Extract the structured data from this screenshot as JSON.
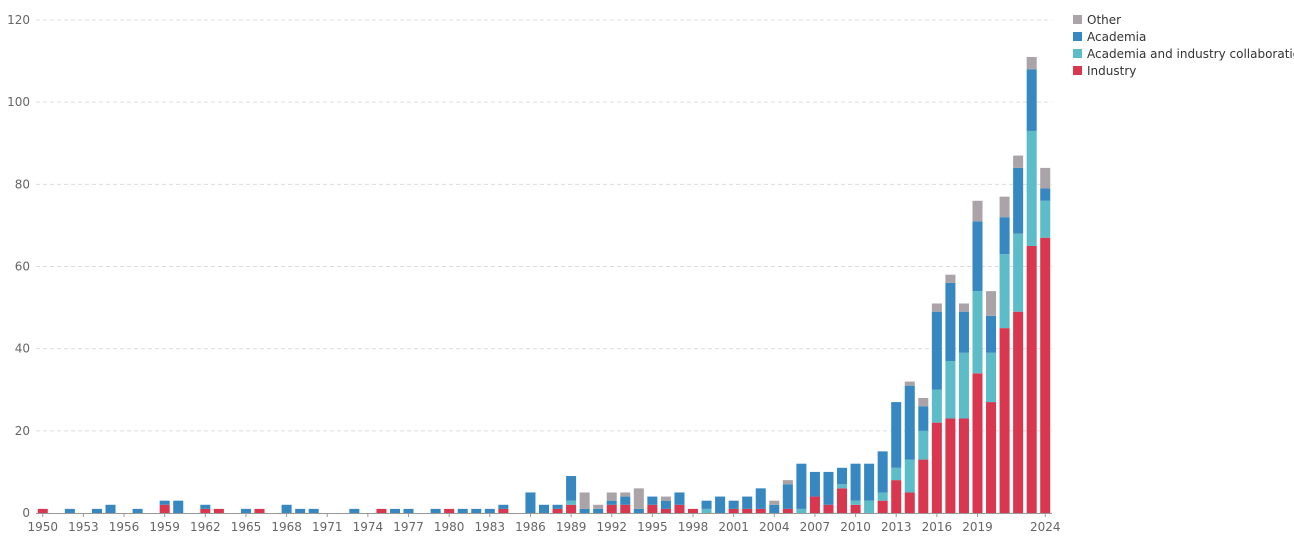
{
  "chart_data": {
    "type": "bar",
    "stacked": true,
    "grid": true,
    "legend_position": "top-right",
    "title": "",
    "xlabel": "",
    "ylabel": "",
    "ylim": [
      0,
      120
    ],
    "y_ticks": [
      0,
      20,
      40,
      60,
      80,
      100,
      120
    ],
    "x_tick_labels": [
      "1950",
      "1953",
      "1956",
      "1959",
      "1962",
      "1965",
      "1968",
      "1971",
      "1974",
      "1977",
      "1980",
      "1983",
      "1986",
      "1989",
      "1992",
      "1995",
      "1998",
      "2001",
      "2004",
      "2007",
      "2010",
      "2013",
      "2016",
      "2019",
      "2024"
    ],
    "categories": [
      "1950",
      "1951",
      "1952",
      "1953",
      "1954",
      "1955",
      "1956",
      "1957",
      "1958",
      "1959",
      "1960",
      "1961",
      "1962",
      "1963",
      "1964",
      "1965",
      "1966",
      "1967",
      "1968",
      "1969",
      "1970",
      "1971",
      "1972",
      "1973",
      "1974",
      "1975",
      "1976",
      "1977",
      "1978",
      "1979",
      "1980",
      "1981",
      "1982",
      "1983",
      "1984",
      "1985",
      "1986",
      "1987",
      "1988",
      "1989",
      "1990",
      "1991",
      "1992",
      "1993",
      "1994",
      "1995",
      "1996",
      "1997",
      "1998",
      "1999",
      "2000",
      "2001",
      "2002",
      "2003",
      "2004",
      "2005",
      "2006",
      "2007",
      "2008",
      "2009",
      "2010",
      "2011",
      "2012",
      "2013",
      "2014",
      "2015",
      "2016",
      "2017",
      "2018",
      "2019",
      "2020",
      "2021",
      "2022",
      "2023",
      "2024"
    ],
    "series": [
      {
        "name": "Industry",
        "color": "#d9374f",
        "values": [
          1,
          0,
          0,
          0,
          0,
          0,
          0,
          0,
          0,
          2,
          0,
          0,
          1,
          1,
          0,
          0,
          1,
          0,
          0,
          0,
          0,
          0,
          0,
          0,
          0,
          1,
          0,
          0,
          0,
          0,
          1,
          0,
          0,
          0,
          1,
          0,
          0,
          0,
          1,
          2,
          0,
          0,
          2,
          2,
          0,
          2,
          1,
          2,
          1,
          0,
          0,
          1,
          1,
          1,
          0,
          1,
          0,
          4,
          2,
          6,
          2,
          0,
          3,
          8,
          5,
          13,
          22,
          23,
          23,
          34,
          27,
          45,
          49,
          65,
          67
        ]
      },
      {
        "name": "Academia and industry collaboration",
        "color": "#5cbcc8",
        "values": [
          0,
          0,
          0,
          0,
          0,
          0,
          0,
          0,
          0,
          0,
          0,
          0,
          0,
          0,
          0,
          0,
          0,
          0,
          0,
          0,
          0,
          0,
          0,
          0,
          0,
          0,
          0,
          0,
          0,
          0,
          0,
          0,
          0,
          0,
          0,
          0,
          0,
          0,
          0,
          1,
          0,
          0,
          0,
          0,
          0,
          0,
          0,
          0,
          0,
          1,
          0,
          0,
          0,
          0,
          0,
          0,
          1,
          0,
          0,
          1,
          1,
          3,
          2,
          3,
          8,
          7,
          8,
          14,
          16,
          20,
          12,
          18,
          19,
          28,
          9
        ]
      },
      {
        "name": "Academia",
        "color": "#3787c0",
        "values": [
          0,
          0,
          1,
          0,
          1,
          2,
          0,
          1,
          0,
          1,
          3,
          0,
          1,
          0,
          0,
          1,
          0,
          0,
          2,
          1,
          1,
          0,
          0,
          1,
          0,
          0,
          1,
          1,
          0,
          1,
          0,
          1,
          1,
          1,
          1,
          0,
          5,
          2,
          1,
          6,
          1,
          1,
          1,
          2,
          1,
          2,
          2,
          3,
          0,
          2,
          4,
          2,
          3,
          5,
          2,
          6,
          11,
          6,
          8,
          4,
          9,
          9,
          10,
          16,
          18,
          6,
          19,
          19,
          10,
          17,
          9,
          9,
          16,
          15,
          3
        ]
      },
      {
        "name": "Other",
        "color": "#aaa3a8",
        "values": [
          0,
          0,
          0,
          0,
          0,
          0,
          0,
          0,
          0,
          0,
          0,
          0,
          0,
          0,
          0,
          0,
          0,
          0,
          0,
          0,
          0,
          0,
          0,
          0,
          0,
          0,
          0,
          0,
          0,
          0,
          0,
          0,
          0,
          0,
          0,
          0,
          0,
          0,
          0,
          0,
          4,
          1,
          2,
          1,
          5,
          0,
          1,
          0,
          0,
          0,
          0,
          0,
          0,
          0,
          1,
          1,
          0,
          0,
          0,
          0,
          0,
          0,
          0,
          0,
          1,
          2,
          2,
          2,
          2,
          5,
          6,
          5,
          3,
          3,
          5
        ]
      }
    ],
    "legend": [
      {
        "label": "Other",
        "color": "#aaa3a8"
      },
      {
        "label": "Academia",
        "color": "#3787c0"
      },
      {
        "label": "Academia and industry collaboration",
        "color": "#5cbcc8"
      },
      {
        "label": "Industry",
        "color": "#d9374f"
      }
    ]
  }
}
